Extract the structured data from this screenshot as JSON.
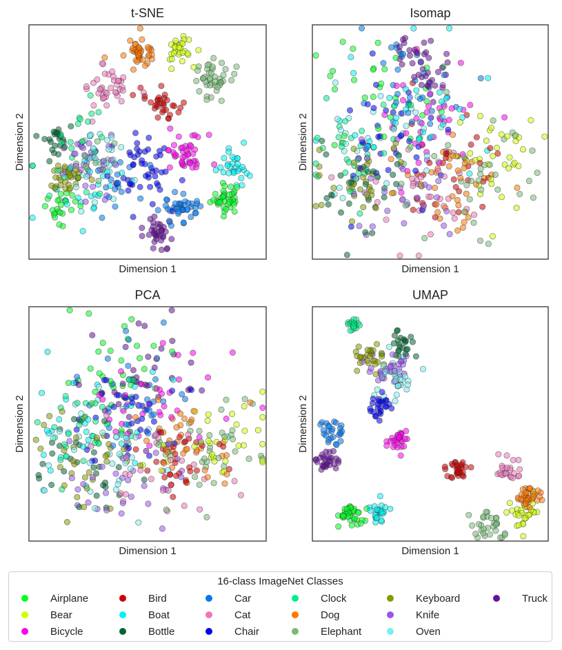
{
  "chart_data": [
    {
      "type": "scatter",
      "title": "t-SNE",
      "xlabel": "Dimension 1",
      "ylabel": "Dimension 2",
      "xticks": [],
      "yticks": [],
      "grid": false,
      "xlim": [
        0,
        100
      ],
      "ylim": [
        0,
        100
      ],
      "clusters": [
        {
          "class": "Airplane",
          "center": [
            83,
            26
          ],
          "spread": 3.2,
          "n": 40
        },
        {
          "class": "Airplane",
          "center": [
            13,
            22
          ],
          "spread": 3.5,
          "n": 22
        },
        {
          "class": "Bear",
          "center": [
            63,
            89
          ],
          "spread": 3.2,
          "n": 28
        },
        {
          "class": "Bicycle",
          "center": [
            66,
            45
          ],
          "spread": 4.2,
          "n": 42
        },
        {
          "class": "Bird",
          "center": [
            56,
            66
          ],
          "spread": 3.5,
          "n": 32
        },
        {
          "class": "Boat",
          "center": [
            87,
            40
          ],
          "spread": 3.5,
          "n": 30
        },
        {
          "class": "Boat",
          "center": [
            25,
            30
          ],
          "spread": 8,
          "n": 22
        },
        {
          "class": "Bottle",
          "center": [
            10,
            51
          ],
          "spread": 3.5,
          "n": 22
        },
        {
          "class": "Car",
          "center": [
            63,
            21
          ],
          "spread": 4,
          "n": 40
        },
        {
          "class": "Car",
          "center": [
            38,
            30
          ],
          "spread": 8,
          "n": 16
        },
        {
          "class": "Cat",
          "center": [
            32,
            73
          ],
          "spread": 5,
          "n": 38
        },
        {
          "class": "Chair",
          "center": [
            48,
            39
          ],
          "spread": 7,
          "n": 48
        },
        {
          "class": "Clock",
          "center": [
            20,
            46
          ],
          "spread": 10,
          "n": 26
        },
        {
          "class": "Dog",
          "center": [
            46,
            89
          ],
          "spread": 3.5,
          "n": 40
        },
        {
          "class": "Elephant",
          "center": [
            76,
            77
          ],
          "spread": 4.5,
          "n": 42
        },
        {
          "class": "Elephant",
          "center": [
            26,
            40
          ],
          "spread": 6,
          "n": 14
        },
        {
          "class": "Keyboard",
          "center": [
            16,
            35
          ],
          "spread": 3.8,
          "n": 32
        },
        {
          "class": "Knife",
          "center": [
            24,
            42
          ],
          "spread": 6,
          "n": 36
        },
        {
          "class": "Oven",
          "center": [
            30,
            44
          ],
          "spread": 7,
          "n": 30
        },
        {
          "class": "Truck",
          "center": [
            54,
            11
          ],
          "spread": 3.5,
          "n": 35
        }
      ]
    },
    {
      "type": "scatter",
      "title": "Isomap",
      "xlabel": "Dimension 1",
      "ylabel": "Dimension 2",
      "xticks": [],
      "yticks": [],
      "grid": false,
      "xlim": [
        0,
        100
      ],
      "ylim": [
        0,
        100
      ],
      "clusters": [
        {
          "class": "Airplane",
          "center": [
            30,
            70
          ],
          "spread": 14,
          "n": 34
        },
        {
          "class": "Bear",
          "center": [
            78,
            42
          ],
          "spread": 10,
          "n": 34
        },
        {
          "class": "Bicycle",
          "center": [
            52,
            60
          ],
          "spread": 13,
          "n": 34
        },
        {
          "class": "Bird",
          "center": [
            58,
            40
          ],
          "spread": 10,
          "n": 32
        },
        {
          "class": "Boat",
          "center": [
            42,
            62
          ],
          "spread": 15,
          "n": 34
        },
        {
          "class": "Bottle",
          "center": [
            20,
            28
          ],
          "spread": 10,
          "n": 30
        },
        {
          "class": "Car",
          "center": [
            44,
            74
          ],
          "spread": 11,
          "n": 34
        },
        {
          "class": "Cat",
          "center": [
            48,
            24
          ],
          "spread": 12,
          "n": 30
        },
        {
          "class": "Chair",
          "center": [
            33,
            52
          ],
          "spread": 13,
          "n": 34
        },
        {
          "class": "Clock",
          "center": [
            18,
            44
          ],
          "spread": 11,
          "n": 32
        },
        {
          "class": "Dog",
          "center": [
            62,
            32
          ],
          "spread": 12,
          "n": 38
        },
        {
          "class": "Elephant",
          "center": [
            72,
            40
          ],
          "spread": 13,
          "n": 34
        },
        {
          "class": "Keyboard",
          "center": [
            20,
            34
          ],
          "spread": 8,
          "n": 34
        },
        {
          "class": "Knife",
          "center": [
            38,
            30
          ],
          "spread": 13,
          "n": 32
        },
        {
          "class": "Oven",
          "center": [
            28,
            48
          ],
          "spread": 14,
          "n": 32
        },
        {
          "class": "Truck",
          "center": [
            48,
            83
          ],
          "spread": 6,
          "n": 38
        }
      ]
    },
    {
      "type": "scatter",
      "title": "PCA",
      "xlabel": "Dimension 1",
      "ylabel": "Dimension 2",
      "xticks": [],
      "yticks": [],
      "grid": false,
      "xlim": [
        0,
        100
      ],
      "ylim": [
        0,
        100
      ],
      "clusters": [
        {
          "class": "Airplane",
          "center": [
            35,
            68
          ],
          "spread": 12,
          "n": 34
        },
        {
          "class": "Bear",
          "center": [
            78,
            44
          ],
          "spread": 10,
          "n": 32
        },
        {
          "class": "Bicycle",
          "center": [
            55,
            56
          ],
          "spread": 14,
          "n": 34
        },
        {
          "class": "Bird",
          "center": [
            62,
            35
          ],
          "spread": 10,
          "n": 30
        },
        {
          "class": "Boat",
          "center": [
            30,
            52
          ],
          "spread": 15,
          "n": 32
        },
        {
          "class": "Bottle",
          "center": [
            25,
            30
          ],
          "spread": 12,
          "n": 30
        },
        {
          "class": "Car",
          "center": [
            46,
            62
          ],
          "spread": 11,
          "n": 34
        },
        {
          "class": "Cat",
          "center": [
            58,
            28
          ],
          "spread": 12,
          "n": 30
        },
        {
          "class": "Chair",
          "center": [
            40,
            50
          ],
          "spread": 12,
          "n": 34
        },
        {
          "class": "Clock",
          "center": [
            26,
            48
          ],
          "spread": 12,
          "n": 32
        },
        {
          "class": "Dog",
          "center": [
            66,
            40
          ],
          "spread": 11,
          "n": 38
        },
        {
          "class": "Elephant",
          "center": [
            76,
            42
          ],
          "spread": 12,
          "n": 34
        },
        {
          "class": "Keyboard",
          "center": [
            24,
            36
          ],
          "spread": 10,
          "n": 34
        },
        {
          "class": "Knife",
          "center": [
            40,
            26
          ],
          "spread": 13,
          "n": 32
        },
        {
          "class": "Oven",
          "center": [
            34,
            34
          ],
          "spread": 13,
          "n": 32
        },
        {
          "class": "Truck",
          "center": [
            48,
            72
          ],
          "spread": 12,
          "n": 34
        }
      ]
    },
    {
      "type": "scatter",
      "title": "UMAP",
      "xlabel": "Dimension 1",
      "ylabel": "Dimension 2",
      "xticks": [],
      "yticks": [],
      "grid": false,
      "xlim": [
        0,
        100
      ],
      "ylim": [
        0,
        100
      ],
      "clusters": [
        {
          "class": "Airplane",
          "center": [
            16,
            11
          ],
          "spread": 2.8,
          "n": 36
        },
        {
          "class": "Bear",
          "center": [
            90,
            11
          ],
          "spread": 3,
          "n": 26
        },
        {
          "class": "Bicycle",
          "center": [
            37,
            43
          ],
          "spread": 3,
          "n": 28
        },
        {
          "class": "Bird",
          "center": [
            62,
            31
          ],
          "spread": 2.5,
          "n": 30
        },
        {
          "class": "Boat",
          "center": [
            28,
            12
          ],
          "spread": 2,
          "n": 26
        },
        {
          "class": "Bottle",
          "center": [
            38,
            84
          ],
          "spread": 2.5,
          "n": 24
        },
        {
          "class": "Car",
          "center": [
            9,
            46
          ],
          "spread": 2.5,
          "n": 26
        },
        {
          "class": "Cat",
          "center": [
            83,
            30
          ],
          "spread": 3,
          "n": 24
        },
        {
          "class": "Chair",
          "center": [
            28,
            58
          ],
          "spread": 3,
          "n": 26
        },
        {
          "class": "Clock",
          "center": [
            17,
            92
          ],
          "spread": 1.5,
          "n": 18
        },
        {
          "class": "Dog",
          "center": [
            92,
            19
          ],
          "spread": 2.5,
          "n": 36
        },
        {
          "class": "Elephant",
          "center": [
            76,
            7
          ],
          "spread": 4,
          "n": 30
        },
        {
          "class": "Keyboard",
          "center": [
            23,
            79
          ],
          "spread": 3,
          "n": 28
        },
        {
          "class": "Knife",
          "center": [
            33,
            73
          ],
          "spread": 4,
          "n": 30
        },
        {
          "class": "Oven",
          "center": [
            35,
            70
          ],
          "spread": 5,
          "n": 30
        },
        {
          "class": "Truck",
          "center": [
            7,
            34
          ],
          "spread": 2.5,
          "n": 30
        }
      ]
    }
  ],
  "legend": {
    "title": "16-class ImageNet Classes",
    "placement": "bottom",
    "items": [
      {
        "label": "Airplane",
        "color": "#00ff22"
      },
      {
        "label": "Bear",
        "color": "#ccff00"
      },
      {
        "label": "Bicycle",
        "color": "#ff00ee"
      },
      {
        "label": "Bird",
        "color": "#cc0000"
      },
      {
        "label": "Boat",
        "color": "#00f2f2"
      },
      {
        "label": "Bottle",
        "color": "#006633"
      },
      {
        "label": "Car",
        "color": "#0077ee"
      },
      {
        "label": "Cat",
        "color": "#ee77bb"
      },
      {
        "label": "Chair",
        "color": "#0000ee"
      },
      {
        "label": "Clock",
        "color": "#00ee88"
      },
      {
        "label": "Dog",
        "color": "#ff7700"
      },
      {
        "label": "Elephant",
        "color": "#77bb77"
      },
      {
        "label": "Keyboard",
        "color": "#889900"
      },
      {
        "label": "Knife",
        "color": "#9955ee"
      },
      {
        "label": "Oven",
        "color": "#77eeee"
      },
      {
        "label": "Truck",
        "color": "#661199"
      }
    ]
  }
}
